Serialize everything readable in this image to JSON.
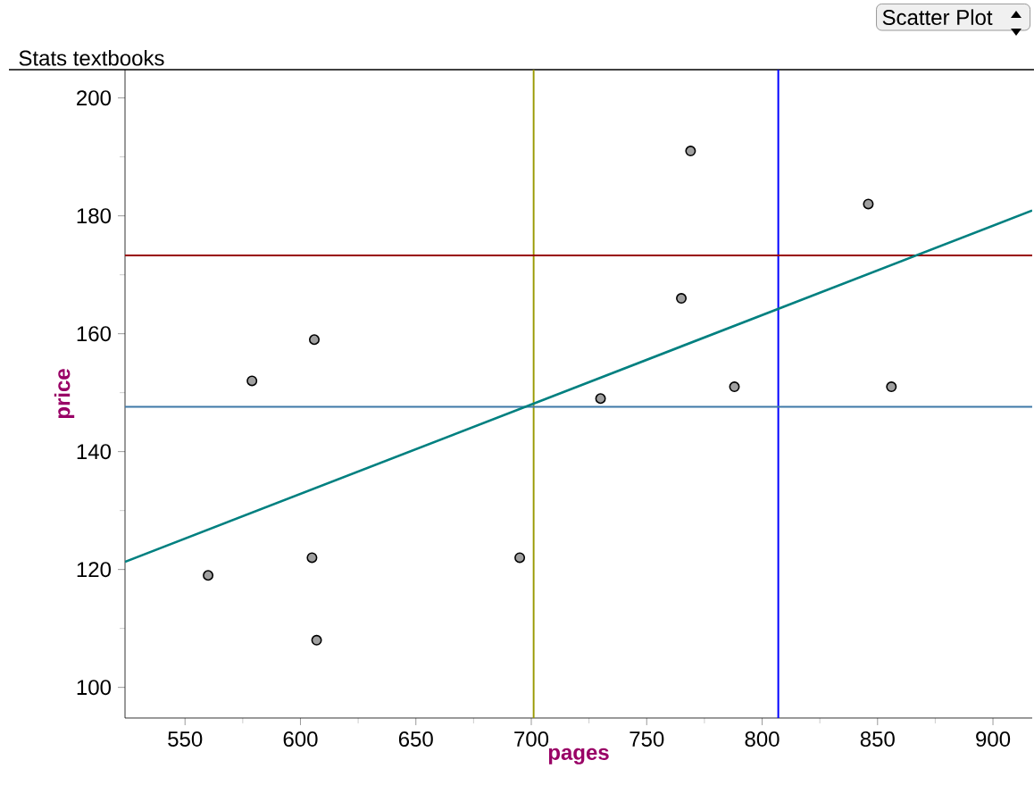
{
  "chart_data": {
    "type": "scatter",
    "title": "Stats textbooks",
    "xlabel": "pages",
    "ylabel": "price",
    "annotations": [
      "Scatter Plot"
    ],
    "series": [
      {
        "color": "#a0a0a0",
        "x": [
          560,
          579,
          605,
          606,
          607,
          695,
          730,
          765,
          769,
          788,
          846,
          856
        ],
        "values": [
          119,
          152,
          122,
          159,
          108,
          122,
          149,
          166,
          191,
          151,
          182,
          151
        ]
      },
      {
        "type": "line",
        "marker": "none",
        "color": "#008080",
        "x": [
          524,
          917
        ],
        "values": [
          121.3,
          180.9
        ]
      }
    ],
    "marker": "circle",
    "grid": false,
    "xlim": [
      524,
      917
    ],
    "ylim": [
      94.8,
      204.8
    ],
    "xticks": [
      550,
      600,
      650,
      700,
      750,
      800,
      850,
      900
    ],
    "yticks": [
      100,
      120,
      140,
      160,
      180,
      200
    ],
    "ref_lines": [
      {
        "axis": "x",
        "value": 701,
        "color": "#999900"
      },
      {
        "axis": "x",
        "value": 807,
        "color": "#0000ff"
      },
      {
        "axis": "y",
        "value": 173.3,
        "color": "#990000"
      },
      {
        "axis": "y",
        "value": 147.6,
        "color": "#3e79a8"
      }
    ]
  }
}
